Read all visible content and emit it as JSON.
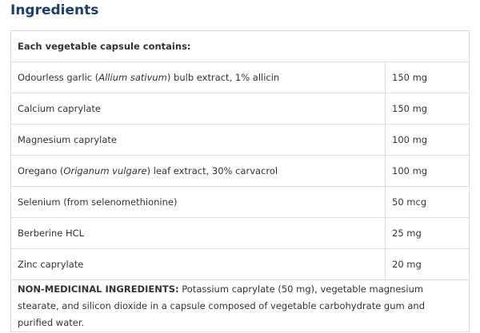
{
  "title": "Ingredients",
  "table": {
    "header": "Each vegetable capsule contains:",
    "rows": [
      {
        "name": [
          "Odourless garlic (",
          "Allium sativum",
          ") bulb extract, 1% allicin"
        ],
        "amount": "150 mg"
      },
      {
        "name": [
          "Calcium caprylate"
        ],
        "amount": "150 mg"
      },
      {
        "name": [
          "Magnesium caprylate"
        ],
        "amount": "100 mg"
      },
      {
        "name": [
          "Oregano (",
          "Origanum vulgare",
          ") leaf extract, 30% carvacrol"
        ],
        "amount": "100 mg"
      },
      {
        "name": [
          "Selenium (from selenomethionine)"
        ],
        "amount": "50 mcg"
      },
      {
        "name": [
          "Berberine HCL"
        ],
        "amount": "25 mg"
      },
      {
        "name": [
          "Zinc caprylate"
        ],
        "amount": "20 mg"
      }
    ],
    "footer": {
      "label": "NON-MEDICINAL INGREDIENTS:",
      "text": " Potassium caprylate (50 mg), vegetable magnesium stearate, and silicon dioxide in a capsule composed of vegetable carbohydrate gum and purified water."
    }
  }
}
